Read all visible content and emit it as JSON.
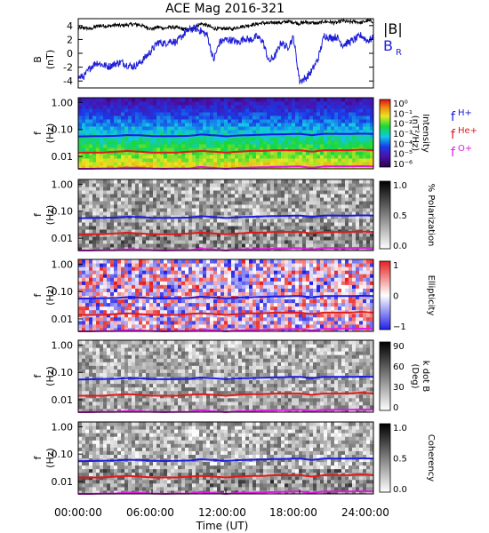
{
  "title": "ACE Mag 2016-321",
  "chart_data": [
    {
      "type": "line",
      "panel": "magnetic-field",
      "ylabel": "B",
      "yunit": "(nT)",
      "yticks": [
        4,
        2,
        0,
        -2,
        -4
      ],
      "ylim": [
        -5,
        5
      ],
      "xlim": [
        0,
        24
      ],
      "series": [
        {
          "name": "|B|",
          "color": "#000000",
          "x": [
            0,
            0.5,
            1,
            1.5,
            2,
            2.5,
            3,
            3.5,
            4,
            4.5,
            5,
            5.5,
            6,
            6.5,
            7,
            7.5,
            8,
            8.5,
            9,
            9.5,
            10,
            10.5,
            11,
            11.5,
            12,
            12.5,
            13,
            13.5,
            14,
            14.5,
            15,
            15.5,
            16,
            16.5,
            17,
            17.5,
            18,
            18.5,
            19,
            19.5,
            20,
            20.5,
            21,
            21.5,
            22,
            22.5,
            23,
            23.5,
            24
          ],
          "values": [
            3.6,
            3.7,
            3.5,
            3.9,
            4.0,
            3.9,
            4.1,
            4.0,
            4.1,
            4.2,
            4.1,
            3.8,
            3.5,
            3.8,
            3.6,
            3.8,
            3.7,
            3.5,
            3.3,
            3.8,
            4.3,
            4.0,
            3.6,
            3.5,
            3.6,
            3.5,
            3.8,
            3.9,
            4.1,
            4.2,
            4.4,
            4.3,
            4.5,
            4.4,
            4.6,
            4.5,
            4.3,
            4.5,
            4.4,
            4.3,
            4.6,
            4.5,
            4.4,
            4.7,
            4.5,
            4.6,
            4.4,
            4.7,
            4.6
          ]
        },
        {
          "name": "B",
          "subscript": "R",
          "color": "#1f1fd8",
          "x": [
            0,
            0.5,
            1,
            1.5,
            2,
            2.5,
            3,
            3.5,
            4,
            4.5,
            5,
            5.5,
            6,
            6.5,
            7,
            7.5,
            8,
            8.5,
            9,
            9.5,
            10,
            10.5,
            11,
            11.5,
            12,
            12.5,
            13,
            13.5,
            14,
            14.5,
            15,
            15.5,
            16,
            16.5,
            17,
            17.5,
            18,
            18.5,
            19,
            19.5,
            20,
            20.5,
            21,
            21.5,
            22,
            22.5,
            23,
            23.5,
            24
          ],
          "values": [
            -3.5,
            -3.3,
            -2.0,
            -1.3,
            -1.7,
            -1.9,
            -1.5,
            -1.3,
            -1.7,
            -1.9,
            -1.4,
            -0.5,
            0.5,
            1.6,
            1.4,
            1.8,
            1.6,
            2.6,
            3.4,
            3.6,
            3.2,
            2.6,
            -1.0,
            1.6,
            2.0,
            1.9,
            1.5,
            2.2,
            1.9,
            2.4,
            1.8,
            -1.2,
            -0.4,
            1.6,
            0.8,
            2.3,
            -4.0,
            -3.6,
            -2.5,
            -0.8,
            2.6,
            2.2,
            2.4,
            1.2,
            1.6,
            2.0,
            2.6,
            1.8,
            2.2
          ]
        }
      ]
    },
    {
      "type": "heatmap",
      "panel": "power-spectrum",
      "ylabel": "f",
      "yunit": "(Hz)",
      "yscale": "log",
      "yticks": [
        "1.00",
        "0.10",
        "0.01"
      ],
      "colorbar": {
        "label": "Intensity",
        "unit": "(nT²/Hz)",
        "ticks": [
          "10⁰",
          "10⁻¹",
          "10⁻²",
          "10⁻³",
          "10⁻⁴",
          "10⁻⁵",
          "10⁻⁶"
        ]
      },
      "overlays": [
        {
          "name": "f",
          "subscript": "H+",
          "color": "#1a1ae0"
        },
        {
          "name": "f",
          "subscript": "He+",
          "color": "#e01a1a"
        },
        {
          "name": "f",
          "subscript": "O+",
          "color": "#e01ae0"
        }
      ]
    },
    {
      "type": "heatmap",
      "panel": "polarization",
      "ylabel": "f",
      "yunit": "(Hz)",
      "yscale": "log",
      "yticks": [
        "1.00",
        "0.10",
        "0.01"
      ],
      "colorbar": {
        "label": "% Polarization",
        "unit": "",
        "ticks": [
          "1.0",
          "0.5",
          "0.0"
        ]
      }
    },
    {
      "type": "heatmap",
      "panel": "ellipticity",
      "ylabel": "f",
      "yunit": "(Hz)",
      "yscale": "log",
      "yticks": [
        "1.00",
        "0.10",
        "0.01"
      ],
      "colorbar": {
        "label": "Ellipticity",
        "unit": "",
        "ticks": [
          "1",
          "0",
          "−1"
        ]
      }
    },
    {
      "type": "heatmap",
      "panel": "wave-normal-angle",
      "ylabel": "f",
      "yunit": "(Hz)",
      "yscale": "log",
      "yticks": [
        "1.00",
        "0.10",
        "0.01"
      ],
      "colorbar": {
        "label": "k dot B",
        "unit": "(Deg)",
        "ticks": [
          "90",
          "60",
          "30",
          "0"
        ]
      }
    },
    {
      "type": "heatmap",
      "panel": "coherency",
      "ylabel": "f",
      "yunit": "(Hz)",
      "yscale": "log",
      "yticks": [
        "1.00",
        "0.10",
        "0.01"
      ],
      "colorbar": {
        "label": "Coherency",
        "unit": "",
        "ticks": [
          "1.0",
          "0.5",
          "0.0"
        ]
      }
    }
  ],
  "gyrofrequency": {
    "x": [
      0,
      1,
      2,
      3,
      4,
      5,
      6,
      7,
      8,
      9,
      10,
      11,
      12,
      13,
      14,
      15,
      16,
      17,
      18,
      19,
      20,
      21,
      22,
      23,
      24
    ],
    "H": [
      0.055,
      0.056,
      0.057,
      0.058,
      0.062,
      0.061,
      0.057,
      0.056,
      0.057,
      0.058,
      0.065,
      0.061,
      0.056,
      0.06,
      0.062,
      0.064,
      0.066,
      0.067,
      0.069,
      0.061,
      0.069,
      0.069,
      0.068,
      0.07,
      0.069
    ],
    "He": [
      0.014,
      0.014,
      0.014,
      0.015,
      0.016,
      0.015,
      0.014,
      0.014,
      0.014,
      0.015,
      0.016,
      0.015,
      0.014,
      0.015,
      0.016,
      0.016,
      0.017,
      0.017,
      0.017,
      0.015,
      0.017,
      0.017,
      0.017,
      0.018,
      0.017
    ],
    "O": [
      0.0035,
      0.0035,
      0.0036,
      0.0036,
      0.0039,
      0.0038,
      0.0036,
      0.0035,
      0.0036,
      0.0036,
      0.0041,
      0.0038,
      0.0035,
      0.0038,
      0.0039,
      0.004,
      0.0041,
      0.0042,
      0.0043,
      0.0038,
      0.0043,
      0.0043,
      0.0043,
      0.0044,
      0.0043
    ]
  },
  "xaxis": {
    "ticks": [
      "00:00:00",
      "06:00:00",
      "12:00:00",
      "18:00:00",
      "24:00:00"
    ],
    "label": "Time (UT)"
  }
}
